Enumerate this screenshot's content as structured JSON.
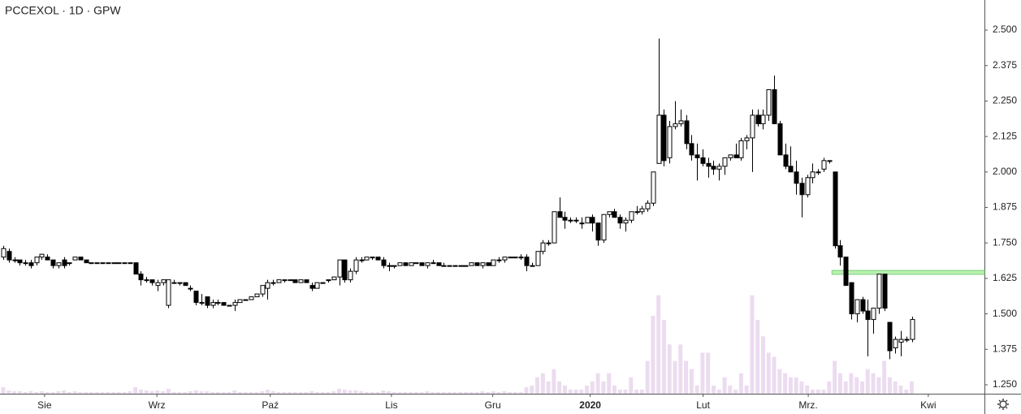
{
  "chart_data": {
    "type": "candlestick",
    "title": "PCCEXOL · 1D · GPW",
    "up_color": "#ffffff",
    "down_color": "#000000",
    "volume_color": "#ecdcf0",
    "ylim": [
      1.2185,
      2.606
    ],
    "yticks": [
      {
        "value": 1.25,
        "label": "1.250"
      },
      {
        "value": 1.375,
        "label": "1.375"
      },
      {
        "value": 1.5,
        "label": "1.500"
      },
      {
        "value": 1.625,
        "label": "1.625"
      },
      {
        "value": 1.75,
        "label": "1.750"
      },
      {
        "value": 1.875,
        "label": "1.875"
      },
      {
        "value": 2.0,
        "label": "2.000"
      },
      {
        "value": 2.125,
        "label": "2.125"
      },
      {
        "value": 2.25,
        "label": "2.250"
      },
      {
        "value": 2.375,
        "label": "2.375"
      },
      {
        "value": 2.5,
        "label": "2.500"
      }
    ],
    "xlim": [
      -0.59,
      178.2
    ],
    "xticks": [
      {
        "value": 7.5,
        "label": "Sie"
      },
      {
        "value": 27.9,
        "label": "Wrz"
      },
      {
        "value": 48.5,
        "label": "Paź"
      },
      {
        "value": 70.5,
        "label": "Lis"
      },
      {
        "value": 88.9,
        "label": "Gru"
      },
      {
        "value": 106.6,
        "label": "2020"
      },
      {
        "value": 127.1,
        "label": "Lut"
      },
      {
        "value": 146.2,
        "label": "Mrz."
      },
      {
        "value": 168,
        "label": "Kwi"
      }
    ],
    "highlight_zone": {
      "low": 1.639,
      "high": 1.653,
      "color": "#b8f0b0"
    },
    "volume_ylim": [
      0,
      480
    ],
    "ohlc": [
      [
        1.7,
        1.74,
        1.69,
        1.73
      ],
      [
        1.72,
        1.73,
        1.68,
        1.69
      ],
      [
        1.69,
        1.7,
        1.68,
        1.69
      ],
      [
        1.69,
        1.69,
        1.67,
        1.68
      ],
      [
        1.68,
        1.69,
        1.67,
        1.68
      ],
      [
        1.68,
        1.69,
        1.66,
        1.67
      ],
      [
        1.68,
        1.7,
        1.67,
        1.7
      ],
      [
        1.7,
        1.71,
        1.69,
        1.71
      ],
      [
        1.7,
        1.71,
        1.69,
        1.69
      ],
      [
        1.69,
        1.69,
        1.66,
        1.67
      ],
      [
        1.67,
        1.68,
        1.66,
        1.68
      ],
      [
        1.69,
        1.7,
        1.66,
        1.67
      ],
      [
        1.68,
        1.68,
        1.67,
        1.68
      ],
      [
        1.69,
        1.7,
        1.69,
        1.7
      ],
      [
        1.7,
        1.7,
        1.69,
        1.69
      ],
      [
        1.69,
        1.69,
        1.68,
        1.68
      ],
      [
        1.68,
        1.68,
        1.68,
        1.68
      ],
      [
        1.68,
        1.68,
        1.68,
        1.68
      ],
      [
        1.68,
        1.68,
        1.68,
        1.68
      ],
      [
        1.68,
        1.68,
        1.68,
        1.68
      ],
      [
        1.68,
        1.68,
        1.68,
        1.68
      ],
      [
        1.68,
        1.68,
        1.68,
        1.68
      ],
      [
        1.68,
        1.68,
        1.68,
        1.68
      ],
      [
        1.68,
        1.68,
        1.68,
        1.68
      ],
      [
        1.68,
        1.68,
        1.64,
        1.64
      ],
      [
        1.64,
        1.65,
        1.6,
        1.62
      ],
      [
        1.62,
        1.63,
        1.61,
        1.62
      ],
      [
        1.62,
        1.62,
        1.6,
        1.61
      ],
      [
        1.6,
        1.62,
        1.58,
        1.61
      ],
      [
        1.61,
        1.62,
        1.6,
        1.62
      ],
      [
        1.53,
        1.62,
        1.52,
        1.62
      ],
      [
        1.61,
        1.62,
        1.61,
        1.61
      ],
      [
        1.61,
        1.61,
        1.6,
        1.61
      ],
      [
        1.61,
        1.61,
        1.6,
        1.6
      ],
      [
        1.59,
        1.6,
        1.58,
        1.59
      ],
      [
        1.58,
        1.58,
        1.53,
        1.54
      ],
      [
        1.54,
        1.57,
        1.53,
        1.54
      ],
      [
        1.56,
        1.56,
        1.52,
        1.53
      ],
      [
        1.53,
        1.55,
        1.52,
        1.54
      ],
      [
        1.54,
        1.55,
        1.53,
        1.54
      ],
      [
        1.54,
        1.54,
        1.53,
        1.53
      ],
      [
        1.53,
        1.53,
        1.53,
        1.53
      ],
      [
        1.53,
        1.55,
        1.51,
        1.54
      ],
      [
        1.54,
        1.55,
        1.54,
        1.55
      ],
      [
        1.55,
        1.55,
        1.55,
        1.55
      ],
      [
        1.55,
        1.56,
        1.55,
        1.56
      ],
      [
        1.56,
        1.57,
        1.56,
        1.57
      ],
      [
        1.57,
        1.6,
        1.56,
        1.6
      ],
      [
        1.59,
        1.62,
        1.55,
        1.61
      ],
      [
        1.61,
        1.62,
        1.6,
        1.61
      ],
      [
        1.61,
        1.62,
        1.61,
        1.62
      ],
      [
        1.62,
        1.62,
        1.61,
        1.62
      ],
      [
        1.62,
        1.62,
        1.62,
        1.62
      ],
      [
        1.62,
        1.62,
        1.61,
        1.61
      ],
      [
        1.61,
        1.62,
        1.61,
        1.62
      ],
      [
        1.62,
        1.62,
        1.61,
        1.61
      ],
      [
        1.6,
        1.61,
        1.58,
        1.59
      ],
      [
        1.59,
        1.61,
        1.59,
        1.61
      ],
      [
        1.61,
        1.61,
        1.61,
        1.61
      ],
      [
        1.62,
        1.62,
        1.61,
        1.62
      ],
      [
        1.62,
        1.63,
        1.62,
        1.63
      ],
      [
        1.63,
        1.69,
        1.6,
        1.69
      ],
      [
        1.69,
        1.69,
        1.61,
        1.62
      ],
      [
        1.62,
        1.66,
        1.61,
        1.65
      ],
      [
        1.65,
        1.7,
        1.64,
        1.69
      ],
      [
        1.69,
        1.7,
        1.68,
        1.69
      ],
      [
        1.69,
        1.7,
        1.69,
        1.7
      ],
      [
        1.7,
        1.7,
        1.69,
        1.7
      ],
      [
        1.7,
        1.7,
        1.69,
        1.69
      ],
      [
        1.69,
        1.7,
        1.66,
        1.67
      ],
      [
        1.67,
        1.68,
        1.65,
        1.67
      ],
      [
        1.67,
        1.67,
        1.66,
        1.67
      ],
      [
        1.67,
        1.68,
        1.67,
        1.68
      ],
      [
        1.68,
        1.68,
        1.67,
        1.67
      ],
      [
        1.67,
        1.68,
        1.67,
        1.68
      ],
      [
        1.68,
        1.68,
        1.68,
        1.68
      ],
      [
        1.68,
        1.68,
        1.67,
        1.67
      ],
      [
        1.67,
        1.68,
        1.66,
        1.68
      ],
      [
        1.68,
        1.69,
        1.68,
        1.68
      ],
      [
        1.68,
        1.68,
        1.67,
        1.67
      ],
      [
        1.67,
        1.68,
        1.67,
        1.67
      ],
      [
        1.67,
        1.67,
        1.67,
        1.67
      ],
      [
        1.67,
        1.67,
        1.67,
        1.67
      ],
      [
        1.67,
        1.67,
        1.67,
        1.67
      ],
      [
        1.67,
        1.67,
        1.67,
        1.67
      ],
      [
        1.67,
        1.68,
        1.67,
        1.68
      ],
      [
        1.68,
        1.68,
        1.67,
        1.67
      ],
      [
        1.67,
        1.68,
        1.66,
        1.68
      ],
      [
        1.68,
        1.68,
        1.67,
        1.67
      ],
      [
        1.67,
        1.69,
        1.67,
        1.69
      ],
      [
        1.69,
        1.7,
        1.68,
        1.69
      ],
      [
        1.69,
        1.7,
        1.68,
        1.7
      ],
      [
        1.7,
        1.7,
        1.7,
        1.7
      ],
      [
        1.7,
        1.7,
        1.7,
        1.7
      ],
      [
        1.7,
        1.71,
        1.69,
        1.7
      ],
      [
        1.7,
        1.71,
        1.65,
        1.67
      ],
      [
        1.67,
        1.68,
        1.67,
        1.67
      ],
      [
        1.67,
        1.72,
        1.67,
        1.72
      ],
      [
        1.72,
        1.76,
        1.71,
        1.75
      ],
      [
        1.75,
        1.76,
        1.74,
        1.75
      ],
      [
        1.75,
        1.86,
        1.75,
        1.86
      ],
      [
        1.86,
        1.91,
        1.84,
        1.84
      ],
      [
        1.84,
        1.86,
        1.8,
        1.83
      ],
      [
        1.83,
        1.84,
        1.82,
        1.83
      ],
      [
        1.83,
        1.84,
        1.82,
        1.83
      ],
      [
        1.82,
        1.84,
        1.8,
        1.82
      ],
      [
        1.82,
        1.84,
        1.82,
        1.84
      ],
      [
        1.84,
        1.85,
        1.79,
        1.82
      ],
      [
        1.82,
        1.82,
        1.74,
        1.76
      ],
      [
        1.76,
        1.85,
        1.75,
        1.85
      ],
      [
        1.85,
        1.86,
        1.84,
        1.86
      ],
      [
        1.86,
        1.87,
        1.84,
        1.84
      ],
      [
        1.84,
        1.85,
        1.8,
        1.82
      ],
      [
        1.82,
        1.84,
        1.79,
        1.83
      ],
      [
        1.83,
        1.86,
        1.82,
        1.86
      ],
      [
        1.86,
        1.88,
        1.85,
        1.86
      ],
      [
        1.86,
        1.88,
        1.85,
        1.87
      ],
      [
        1.87,
        1.9,
        1.86,
        1.89
      ],
      [
        1.89,
        2.0,
        1.88,
        2.0
      ],
      [
        2.03,
        2.47,
        2.03,
        2.2
      ],
      [
        2.2,
        2.22,
        2.02,
        2.04
      ],
      [
        2.05,
        2.18,
        2.03,
        2.16
      ],
      [
        2.16,
        2.25,
        2.15,
        2.17
      ],
      [
        2.17,
        2.22,
        2.16,
        2.18
      ],
      [
        2.18,
        2.2,
        2.08,
        2.1
      ],
      [
        2.1,
        2.13,
        2.04,
        2.06
      ],
      [
        2.06,
        2.1,
        1.97,
        2.05
      ],
      [
        2.05,
        2.08,
        2.02,
        2.03
      ],
      [
        2.03,
        2.05,
        1.98,
        2.02
      ],
      [
        2.02,
        2.04,
        1.99,
        2.01
      ],
      [
        2.01,
        2.03,
        1.97,
        2.02
      ],
      [
        2.02,
        2.05,
        1.99,
        2.05
      ],
      [
        2.05,
        2.06,
        2.04,
        2.06
      ],
      [
        2.06,
        2.1,
        2.05,
        2.05
      ],
      [
        2.05,
        2.12,
        2.04,
        2.11
      ],
      [
        2.11,
        2.13,
        2.08,
        2.12
      ],
      [
        2.12,
        2.22,
        2.0,
        2.2
      ],
      [
        2.2,
        2.22,
        2.16,
        2.17
      ],
      [
        2.17,
        2.22,
        2.15,
        2.2
      ],
      [
        2.2,
        2.29,
        2.18,
        2.29
      ],
      [
        2.29,
        2.34,
        2.17,
        2.17
      ],
      [
        2.17,
        2.18,
        2.06,
        2.06
      ],
      [
        2.06,
        2.1,
        2.01,
        2.02
      ],
      [
        2.02,
        2.09,
        2.0,
        2.0
      ],
      [
        2.0,
        2.04,
        1.92,
        1.96
      ],
      [
        1.96,
        1.98,
        1.84,
        1.92
      ],
      [
        1.92,
        1.99,
        1.91,
        1.98
      ],
      [
        1.98,
        2.03,
        1.96,
        2.0
      ],
      [
        2.0,
        2.01,
        1.99,
        2.0
      ],
      [
        2.01,
        2.05,
        2.0,
        2.04
      ],
      [
        2.04,
        2.04,
        2.03,
        2.04
      ],
      [
        2.0,
        2.0,
        1.73,
        1.74
      ],
      [
        1.74,
        1.76,
        1.67,
        1.7
      ],
      [
        1.7,
        1.7,
        1.6,
        1.6
      ],
      [
        1.61,
        1.61,
        1.48,
        1.5
      ],
      [
        1.5,
        1.55,
        1.47,
        1.55
      ],
      [
        1.55,
        1.56,
        1.5,
        1.51
      ],
      [
        1.51,
        1.55,
        1.35,
        1.48
      ],
      [
        1.48,
        1.52,
        1.43,
        1.52
      ],
      [
        1.52,
        1.64,
        1.5,
        1.64
      ],
      [
        1.64,
        1.64,
        1.51,
        1.52
      ],
      [
        1.47,
        1.47,
        1.34,
        1.37
      ],
      [
        1.38,
        1.42,
        1.36,
        1.41
      ],
      [
        1.4,
        1.44,
        1.35,
        1.41
      ],
      [
        1.41,
        1.42,
        1.4,
        1.41
      ],
      [
        1.41,
        1.49,
        1.4,
        1.48
      ]
    ],
    "volumes": [
      8,
      4,
      3,
      3,
      2,
      3,
      2,
      3,
      2,
      2,
      3,
      4,
      2,
      3,
      2,
      2,
      2,
      2,
      2,
      2,
      2,
      2,
      2,
      3,
      8,
      5,
      4,
      3,
      4,
      3,
      6,
      2,
      2,
      2,
      3,
      4,
      3,
      3,
      2,
      2,
      2,
      2,
      4,
      2,
      2,
      2,
      2,
      3,
      5,
      3,
      2,
      2,
      2,
      2,
      2,
      2,
      3,
      2,
      2,
      2,
      3,
      6,
      5,
      4,
      4,
      3,
      2,
      2,
      2,
      4,
      3,
      2,
      2,
      2,
      2,
      2,
      2,
      3,
      2,
      2,
      2,
      2,
      2,
      2,
      2,
      2,
      2,
      3,
      2,
      3,
      2,
      3,
      2,
      2,
      2,
      8,
      10,
      20,
      25,
      15,
      30,
      15,
      10,
      5,
      5,
      5,
      10,
      15,
      25,
      15,
      25,
      10,
      5,
      5,
      20,
      5,
      5,
      40,
      95,
      120,
      90,
      60,
      40,
      60,
      40,
      30,
      10,
      50,
      50,
      10,
      5,
      20,
      10,
      5,
      25,
      10,
      120,
      90,
      70,
      50,
      45,
      30,
      25,
      20,
      20,
      15,
      10,
      5,
      5,
      5,
      15,
      40,
      25,
      15,
      25,
      20,
      15,
      30,
      25,
      20,
      40,
      20,
      15,
      10,
      5,
      15
    ]
  }
}
